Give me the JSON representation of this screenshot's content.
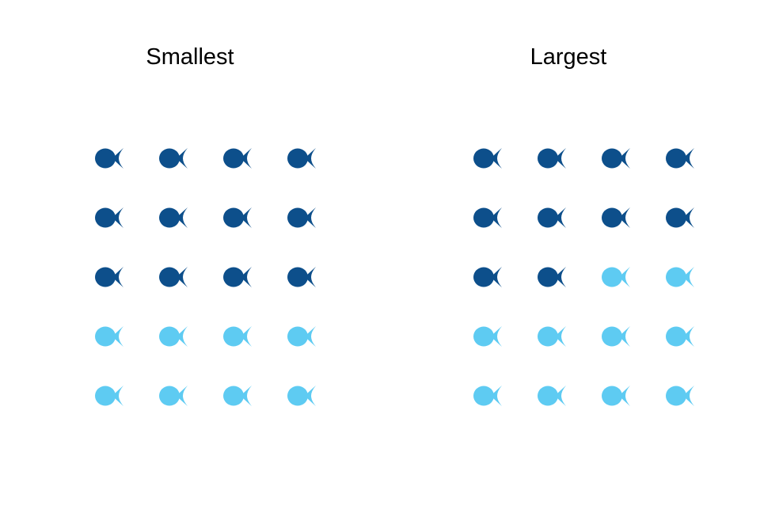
{
  "chart_data": [
    {
      "type": "waffle",
      "title": "Smallest",
      "rows": 5,
      "columns": 4,
      "icon": "fish-icon",
      "highlighted_count": 12,
      "total": 20,
      "colors": {
        "highlighted": "#0d4f8b",
        "other": "#5ecbf2"
      }
    },
    {
      "type": "waffle",
      "title": "Largest",
      "rows": 5,
      "columns": 4,
      "icon": "fish-icon",
      "highlighted_count": 10,
      "total": 20,
      "colors": {
        "highlighted": "#0d4f8b",
        "other": "#5ecbf2"
      }
    }
  ]
}
